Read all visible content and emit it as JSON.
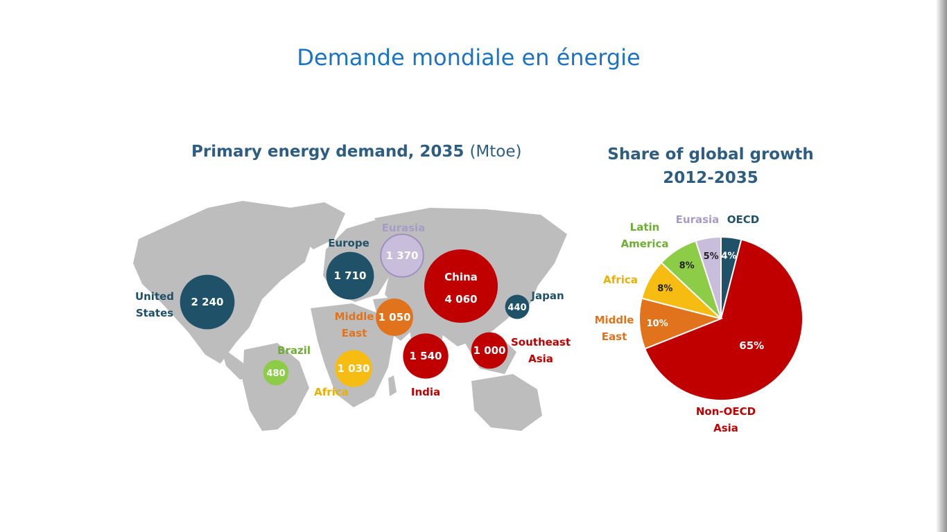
{
  "slide": {
    "title": "Demande mondiale en énergie"
  },
  "map_panel": {
    "title": "Primary energy demand, 2035",
    "unit": "(Mtoe)"
  },
  "pie_panel": {
    "title_line1": "Share of global growth",
    "title_line2": "2012-2035"
  },
  "colors": {
    "oecd": "#1f5168",
    "china_asia": "#c00000",
    "eurasia": "#c8bedc",
    "middle_east": "#e0731c",
    "africa": "#f7bc12",
    "latin_america": "#8ccc46",
    "map_land": "#bdbdbd"
  },
  "chart_data": [
    {
      "type": "bubble-map",
      "title": "Primary energy demand, 2035 (Mtoe)",
      "regions": [
        {
          "name": "United States",
          "label_lines": [
            "United",
            "States"
          ],
          "value": 2240,
          "display": "2 240",
          "group": "oecd"
        },
        {
          "name": "Europe",
          "label_lines": [
            "Europe"
          ],
          "value": 1710,
          "display": "1 710",
          "group": "oecd"
        },
        {
          "name": "Eurasia",
          "label_lines": [
            "Eurasia"
          ],
          "value": 1370,
          "display": "1 370",
          "group": "eurasia"
        },
        {
          "name": "China",
          "label_lines": [
            "China"
          ],
          "value": 4060,
          "display": "4 060",
          "group": "china_asia"
        },
        {
          "name": "Japan",
          "label_lines": [
            "Japan"
          ],
          "value": 440,
          "display": "440",
          "group": "oecd"
        },
        {
          "name": "Middle East",
          "label_lines": [
            "Middle",
            "East"
          ],
          "value": 1050,
          "display": "1 050",
          "group": "middle_east"
        },
        {
          "name": "Brazil",
          "label_lines": [
            "Brazil"
          ],
          "value": 480,
          "display": "480",
          "group": "latin_america"
        },
        {
          "name": "Africa",
          "label_lines": [
            "Africa"
          ],
          "value": 1030,
          "display": "1 030",
          "group": "africa"
        },
        {
          "name": "India",
          "label_lines": [
            "India"
          ],
          "value": 1540,
          "display": "1 540",
          "group": "china_asia"
        },
        {
          "name": "Southeast Asia",
          "label_lines": [
            "Southeast",
            "Asia"
          ],
          "value": 1000,
          "display": "1 000",
          "group": "china_asia"
        }
      ]
    },
    {
      "type": "pie",
      "title": "Share of global growth 2012-2035",
      "slices": [
        {
          "name": "OECD",
          "label_lines": [
            "OECD"
          ],
          "value": 4,
          "display": "4%",
          "group": "oecd"
        },
        {
          "name": "Non-OECD Asia",
          "label_lines": [
            "Non-OECD",
            "Asia"
          ],
          "value": 65,
          "display": "65%",
          "group": "china_asia"
        },
        {
          "name": "Middle East",
          "label_lines": [
            "Middle",
            "East"
          ],
          "value": 10,
          "display": "10%",
          "group": "middle_east"
        },
        {
          "name": "Africa",
          "label_lines": [
            "Africa"
          ],
          "value": 8,
          "display": "8%",
          "group": "africa"
        },
        {
          "name": "Latin America",
          "label_lines": [
            "Latin",
            "America"
          ],
          "value": 8,
          "display": "8%",
          "group": "latin_america"
        },
        {
          "name": "Eurasia",
          "label_lines": [
            "Eurasia"
          ],
          "value": 5,
          "display": "5%",
          "group": "eurasia"
        }
      ]
    }
  ]
}
